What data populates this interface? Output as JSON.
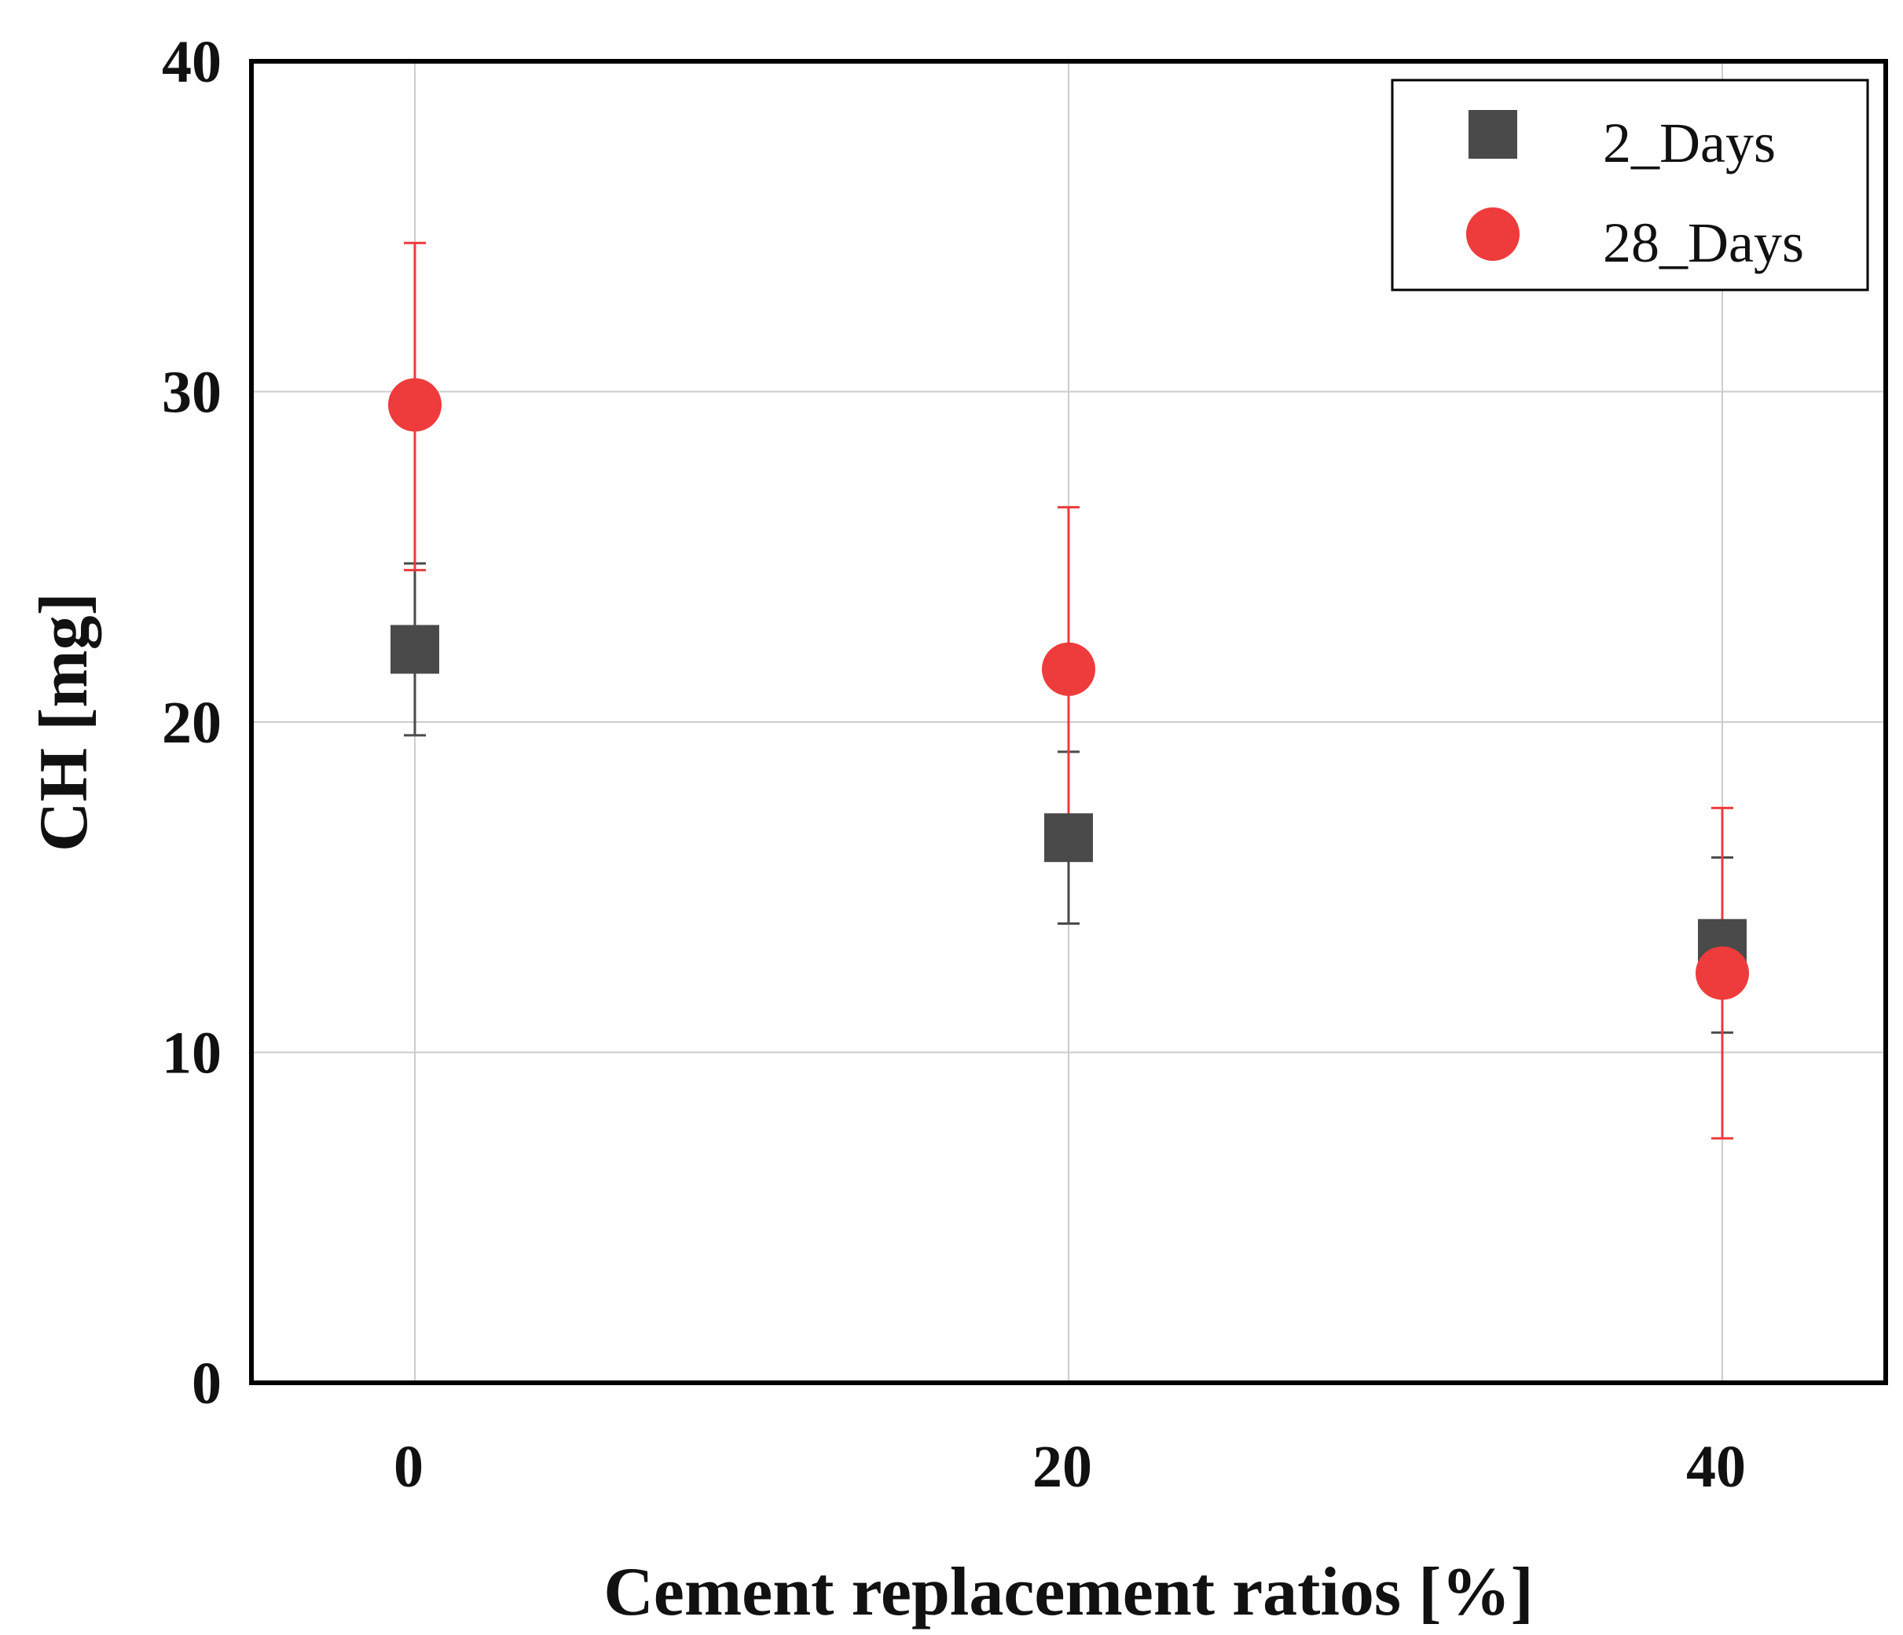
{
  "chart_data": {
    "type": "scatter",
    "title": "",
    "xlabel": "Cement replacement ratios [%]",
    "ylabel": "CH [mg]",
    "x_ticks": [
      "0",
      "20",
      "40"
    ],
    "y_ticks": [
      "0",
      "10",
      "20",
      "30",
      "40"
    ],
    "xlim": [
      -5,
      45
    ],
    "ylim": [
      0,
      40
    ],
    "grid": true,
    "legend_position": "top-right",
    "series": [
      {
        "name": "2_Days",
        "marker": "square",
        "color": "#4a4a4a",
        "points": [
          {
            "x": 0,
            "y": 22.2,
            "err_low": 19.6,
            "err_high": 24.8
          },
          {
            "x": 20,
            "y": 16.5,
            "err_low": 13.9,
            "err_high": 19.1
          },
          {
            "x": 40,
            "y": 13.3,
            "err_low": 10.6,
            "err_high": 15.9
          }
        ]
      },
      {
        "name": "28_Days",
        "marker": "circle",
        "color": "#ee3b3b",
        "points": [
          {
            "x": 0,
            "y": 29.6,
            "err_low": 24.6,
            "err_high": 34.5
          },
          {
            "x": 20,
            "y": 21.6,
            "err_low": 16.6,
            "err_high": 26.5
          },
          {
            "x": 40,
            "y": 12.4,
            "err_low": 7.4,
            "err_high": 17.4
          }
        ]
      }
    ]
  }
}
